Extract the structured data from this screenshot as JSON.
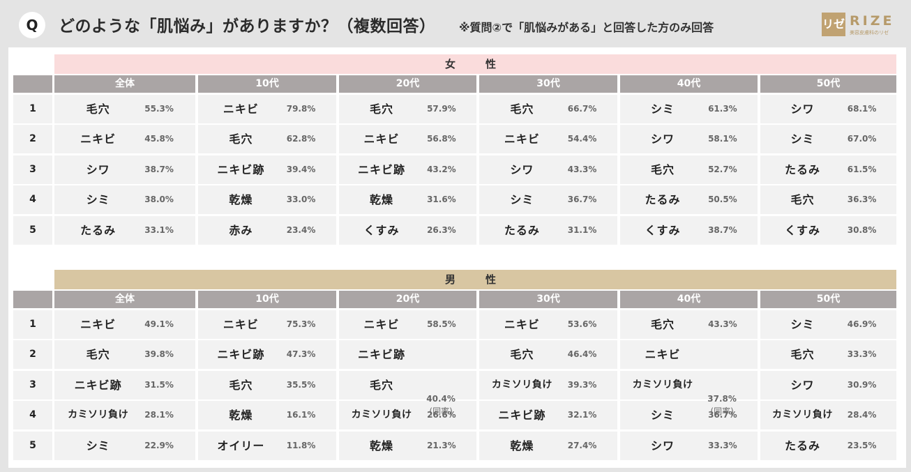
{
  "header": {
    "q_badge": "Q",
    "title": "どのような「肌悩み」がありますか？（複数回答）",
    "note": "※質問②で「肌悩みがある」と回答した方のみ回答",
    "logo_mark": "リゼ",
    "logo_text": "RIZE",
    "logo_sub": "美容皮膚科のリゼ"
  },
  "chart_data": {
    "type": "table",
    "columns": [
      "全体",
      "10代",
      "20代",
      "30代",
      "40代",
      "50代"
    ],
    "ranks": [
      "1",
      "2",
      "3",
      "4",
      "5"
    ],
    "sections": [
      {
        "name": "女　性",
        "color": "#fadcdc",
        "rows": [
          [
            [
              "毛穴",
              "55.3%"
            ],
            [
              "ニキビ",
              "79.8%"
            ],
            [
              "毛穴",
              "57.9%"
            ],
            [
              "毛穴",
              "66.7%"
            ],
            [
              "シミ",
              "61.3%"
            ],
            [
              "シワ",
              "68.1%"
            ]
          ],
          [
            [
              "ニキビ",
              "45.8%"
            ],
            [
              "毛穴",
              "62.8%"
            ],
            [
              "ニキビ",
              "56.8%"
            ],
            [
              "ニキビ",
              "54.4%"
            ],
            [
              "シワ",
              "58.1%"
            ],
            [
              "シミ",
              "67.0%"
            ]
          ],
          [
            [
              "シワ",
              "38.7%"
            ],
            [
              "ニキビ跡",
              "39.4%"
            ],
            [
              "ニキビ跡",
              "43.2%"
            ],
            [
              "シワ",
              "43.3%"
            ],
            [
              "毛穴",
              "52.7%"
            ],
            [
              "たるみ",
              "61.5%"
            ]
          ],
          [
            [
              "シミ",
              "38.0%"
            ],
            [
              "乾燥",
              "33.0%"
            ],
            [
              "乾燥",
              "31.6%"
            ],
            [
              "シミ",
              "36.7%"
            ],
            [
              "たるみ",
              "50.5%"
            ],
            [
              "毛穴",
              "36.3%"
            ]
          ],
          [
            [
              "たるみ",
              "33.1%"
            ],
            [
              "赤み",
              "23.4%"
            ],
            [
              "くすみ",
              "26.3%"
            ],
            [
              "たるみ",
              "31.1%"
            ],
            [
              "くすみ",
              "38.7%"
            ],
            [
              "くすみ",
              "30.8%"
            ]
          ]
        ]
      },
      {
        "name": "男　性",
        "color": "#d8c6a2",
        "rows": [
          [
            [
              "ニキビ",
              "49.1%"
            ],
            [
              "ニキビ",
              "75.3%"
            ],
            [
              "ニキビ",
              "58.5%"
            ],
            [
              "ニキビ",
              "53.6%"
            ],
            [
              "毛穴",
              "43.3%"
            ],
            [
              "シミ",
              "46.9%"
            ]
          ],
          [
            [
              "毛穴",
              "39.8%"
            ],
            [
              "ニキビ跡",
              "47.3%"
            ],
            [
              "ニキビ跡",
              ""
            ],
            [
              "毛穴",
              "46.4%"
            ],
            [
              "ニキビ",
              ""
            ],
            [
              "毛穴",
              "33.3%"
            ]
          ],
          [
            [
              "ニキビ跡",
              "31.5%"
            ],
            [
              "毛穴",
              "35.5%"
            ],
            [
              "毛穴",
              ""
            ],
            [
              "カミソリ負け",
              "39.3%"
            ],
            [
              "カミソリ負け",
              ""
            ],
            [
              "シワ",
              "30.9%"
            ]
          ],
          [
            [
              "カミソリ負け",
              "28.1%"
            ],
            [
              "乾燥",
              "16.1%"
            ],
            [
              "カミソリ負け",
              "26.6%"
            ],
            [
              "ニキビ跡",
              "32.1%"
            ],
            [
              "シミ",
              "36.7%"
            ],
            [
              "カミソリ負け",
              "28.4%"
            ]
          ],
          [
            [
              "シミ",
              "22.9%"
            ],
            [
              "オイリー",
              "11.8%"
            ],
            [
              "乾燥",
              "21.3%"
            ],
            [
              "乾燥",
              "27.4%"
            ],
            [
              "シワ",
              "33.3%"
            ],
            [
              "たるみ",
              "23.5%"
            ]
          ]
        ],
        "ties": [
          {
            "col": 2,
            "rows": [
              2,
              3
            ],
            "value": "40.4%",
            "label": "(同率)"
          },
          {
            "col": 4,
            "rows": [
              2,
              3
            ],
            "value": "37.8%",
            "label": "(同率)"
          }
        ]
      }
    ]
  }
}
